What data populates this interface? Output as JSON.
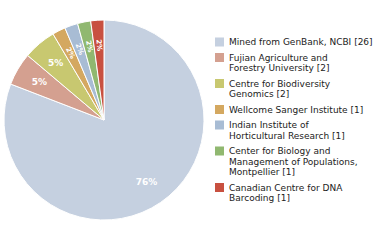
{
  "chart_data": {
    "type": "pie",
    "categories": [
      "Mined from GenBank, NCBI [26]",
      "Fujian Agriculture and\nForestry University [2]",
      "Centre for Biodiversity\nGenomics [2]",
      "Wellcome Sanger Institute [1]",
      "Indian Institute of\nHorticultural Research [1]",
      "Center for Biology and\nManagement of Populations,\nMontpellier [1]",
      "Canadian Centre for DNA\nBarcoding [1]"
    ],
    "values": [
      76,
      5,
      5,
      2,
      2,
      2,
      2
    ],
    "value_labels": [
      "76%",
      "5%",
      "5%",
      "2%",
      "2%",
      "2%",
      "2%"
    ],
    "colors": [
      "#c5d0e0",
      "#d4a090",
      "#c8c870",
      "#d4a860",
      "#a8bcd4",
      "#90b870",
      "#c85040"
    ],
    "data_labels": true,
    "legend": "right"
  }
}
